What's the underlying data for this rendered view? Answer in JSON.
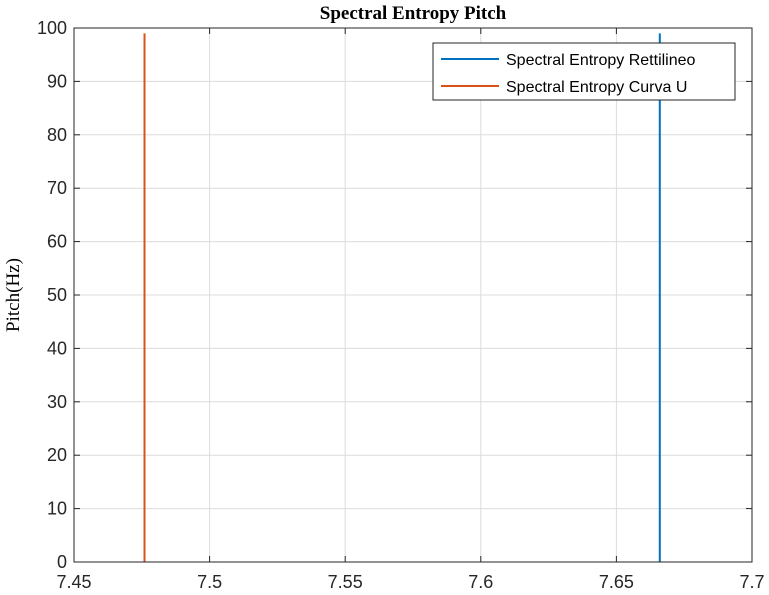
{
  "chart_data": {
    "type": "line",
    "title": "Spectral Entropy Pitch",
    "xlabel": "",
    "ylabel": "Pitch(Hz)",
    "xlim": [
      7.45,
      7.7
    ],
    "ylim": [
      0,
      100
    ],
    "xticks": [
      "7.45",
      "7.5",
      "7.55",
      "7.6",
      "7.65",
      "7.7"
    ],
    "yticks": [
      "0",
      "10",
      "20",
      "30",
      "40",
      "50",
      "60",
      "70",
      "80",
      "90",
      "100"
    ],
    "grid": true,
    "legend_position": "top-right",
    "series": [
      {
        "name": "Spectral Entropy Rettilineo",
        "color": "#0072BD",
        "x": [
          7.666,
          7.666
        ],
        "y": [
          0,
          99
        ]
      },
      {
        "name": "Spectral Entropy Curva U",
        "color": "#D95319",
        "x": [
          7.476,
          7.476
        ],
        "y": [
          0,
          99
        ]
      }
    ]
  }
}
